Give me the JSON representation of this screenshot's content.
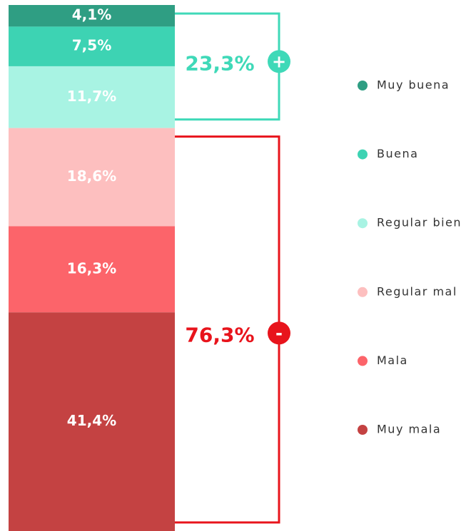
{
  "chart_data": {
    "type": "bar",
    "stacked": true,
    "series": [
      {
        "name": "Muy buena",
        "color": "#2f9e83",
        "values": [
          4.1
        ],
        "value_labels": [
          "4,1%"
        ]
      },
      {
        "name": "Buena",
        "color": "#3dd3b3",
        "values": [
          7.5
        ],
        "value_labels": [
          "7,5%"
        ]
      },
      {
        "name": "Regular bien",
        "color": "#a8f3e3",
        "values": [
          11.7
        ],
        "value_labels": [
          "11,7%"
        ]
      },
      {
        "name": "Regular mal",
        "color": "#fdbfbf",
        "values": [
          18.6
        ],
        "value_labels": [
          "18,6%"
        ]
      },
      {
        "name": "Mala",
        "color": "#fc646a",
        "values": [
          16.3
        ],
        "value_labels": [
          "16,3%"
        ]
      },
      {
        "name": "Muy mala",
        "color": "#c44242",
        "values": [
          41.4
        ],
        "value_labels": [
          "41,4%"
        ]
      }
    ],
    "annotations": [
      {
        "label": "23,3%",
        "value": 23.3,
        "symbol": "+",
        "color": "#3fd9b8"
      },
      {
        "label": "76,3%",
        "value": 76.3,
        "symbol": "-",
        "color": "#e8141c"
      }
    ]
  }
}
